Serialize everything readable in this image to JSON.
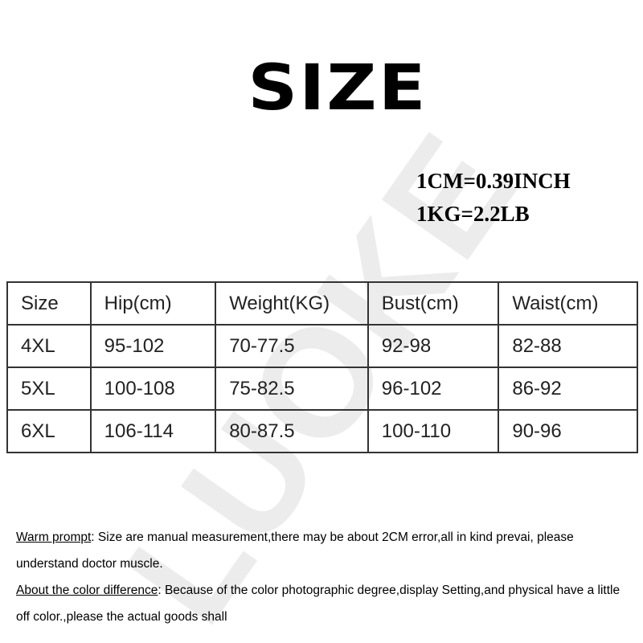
{
  "watermark": "LUOKE",
  "header": {
    "title": "SIZE",
    "conversions": [
      "1CM=0.39INCH",
      "1KG=2.2LB"
    ]
  },
  "table": {
    "columns": [
      "Size",
      "Hip(cm)",
      "Weight(KG)",
      "Bust(cm)",
      "Waist(cm)"
    ],
    "rows": [
      [
        "4XL",
        "95-102",
        "70-77.5",
        "92-98",
        "82-88"
      ],
      [
        "5XL",
        "100-108",
        "75-82.5",
        "96-102",
        "86-92"
      ],
      [
        "6XL",
        "106-114",
        "80-87.5",
        "100-110",
        "90-96"
      ]
    ]
  },
  "notes": [
    {
      "label": "Warm prompt",
      "text": ": Size are manual measurement,there may be about 2CM error,all in kind prevai, please understand doctor muscle."
    },
    {
      "label": "About the color difference",
      "text": ": Because of the color photographic degree,display Setting,and physical have a little off color.,please the actual goods shall"
    }
  ]
}
